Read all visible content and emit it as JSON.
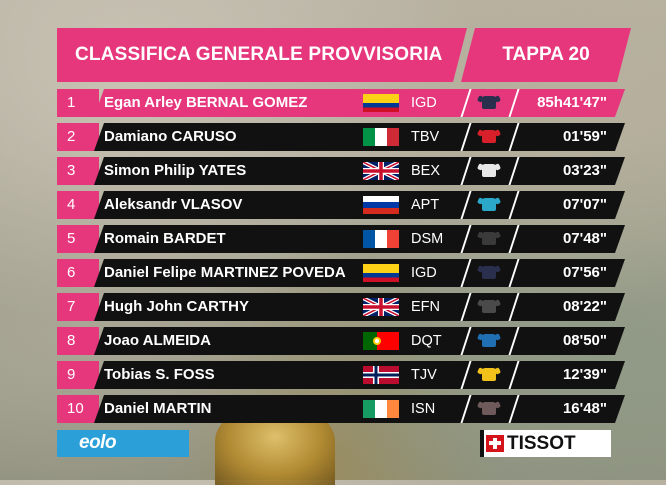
{
  "header": {
    "title": "CLASSIFICA GENERALE PROVVISORIA",
    "stage": "TAPPA 20"
  },
  "colors": {
    "accent": "#e6377d",
    "row_bg": "#111111"
  },
  "standings": [
    {
      "pos": "1",
      "name": "Egan Arley BERNAL GOMEZ",
      "flag": "COL",
      "team": "IGD",
      "time": "85h41'47\"",
      "jersey_color": "#2b2f4e",
      "leader": true
    },
    {
      "pos": "2",
      "name": "Damiano CARUSO",
      "flag": "ITA",
      "team": "TBV",
      "time": "01'59\"",
      "jersey_color": "#d8202a"
    },
    {
      "pos": "3",
      "name": "Simon Philip YATES",
      "flag": "GBR",
      "team": "BEX",
      "time": "03'23\"",
      "jersey_color": "#e8e8e8"
    },
    {
      "pos": "4",
      "name": "Aleksandr VLASOV",
      "flag": "RUS",
      "team": "APT",
      "time": "07'07\"",
      "jersey_color": "#2aa7c9"
    },
    {
      "pos": "5",
      "name": "Romain BARDET",
      "flag": "FRA",
      "team": "DSM",
      "time": "07'48\"",
      "jersey_color": "#3a3a3a"
    },
    {
      "pos": "6",
      "name": "Daniel Felipe MARTINEZ POVEDA",
      "flag": "COL",
      "team": "IGD",
      "time": "07'56\"",
      "jersey_color": "#2b2f4e"
    },
    {
      "pos": "7",
      "name": "Hugh John CARTHY",
      "flag": "GBR",
      "team": "EFN",
      "time": "08'22\"",
      "jersey_color": "#4a4a4a"
    },
    {
      "pos": "8",
      "name": "Joao ALMEIDA",
      "flag": "POR",
      "team": "DQT",
      "time": "08'50\"",
      "jersey_color": "#1f6fb2"
    },
    {
      "pos": "9",
      "name": "Tobias S. FOSS",
      "flag": "NOR",
      "team": "TJV",
      "time": "12'39\"",
      "jersey_color": "#f2c21b"
    },
    {
      "pos": "10",
      "name": "Daniel MARTIN",
      "flag": "IRL",
      "team": "ISN",
      "time": "16'48\"",
      "jersey_color": "#6e5a5a"
    }
  ],
  "sponsors": {
    "left": "eolo",
    "right": "TISSOT"
  }
}
